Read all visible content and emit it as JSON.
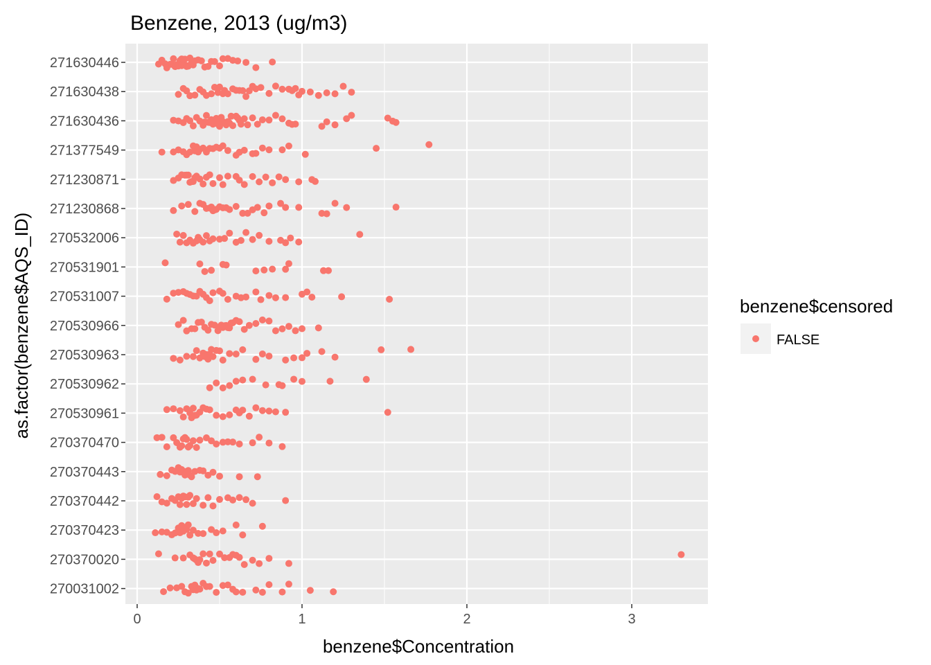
{
  "chart_data": {
    "type": "scatter",
    "title": "Benzene, 2013 (ug/m3)",
    "xlabel": "benzene$Concentration",
    "ylabel": "as.factor(benzene$AQS_ID)",
    "xlim": [
      -0.03,
      3.45
    ],
    "x_ticks": [
      "0",
      "1",
      "2",
      "3"
    ],
    "grid": true,
    "point_color": "#F8766D",
    "panel_color": "#EBEBEB",
    "legend": {
      "title": "benzene$censored",
      "position": "right",
      "entries": [
        "FALSE"
      ]
    },
    "categories": [
      "271630446",
      "271630438",
      "271630436",
      "271377549",
      "271230871",
      "271230868",
      "270532006",
      "270531901",
      "270531007",
      "270530966",
      "270530963",
      "270530962",
      "270530961",
      "270370470",
      "270370443",
      "270370442",
      "270370423",
      "270370020",
      "270031002"
    ],
    "series": [
      {
        "category": "271630446",
        "x": [
          0.13,
          0.15,
          0.17,
          0.18,
          0.2,
          0.21,
          0.22,
          0.23,
          0.24,
          0.25,
          0.25,
          0.26,
          0.27,
          0.27,
          0.28,
          0.28,
          0.29,
          0.3,
          0.3,
          0.31,
          0.32,
          0.33,
          0.34,
          0.35,
          0.37,
          0.39,
          0.41,
          0.43,
          0.45,
          0.47,
          0.5,
          0.52,
          0.55,
          0.58,
          0.61,
          0.66,
          0.72,
          0.82
        ]
      },
      {
        "category": "271630438",
        "x": [
          0.25,
          0.28,
          0.3,
          0.32,
          0.35,
          0.38,
          0.4,
          0.42,
          0.45,
          0.47,
          0.49,
          0.5,
          0.52,
          0.53,
          0.55,
          0.58,
          0.6,
          0.62,
          0.64,
          0.66,
          0.68,
          0.7,
          0.72,
          0.75,
          0.8,
          0.84,
          0.88,
          0.92,
          0.94,
          0.96,
          0.98,
          1.0,
          1.05,
          1.1,
          1.15,
          1.2,
          1.25,
          1.3
        ]
      },
      {
        "category": "271630436",
        "x": [
          0.22,
          0.25,
          0.28,
          0.3,
          0.32,
          0.34,
          0.36,
          0.38,
          0.4,
          0.41,
          0.42,
          0.43,
          0.44,
          0.45,
          0.46,
          0.47,
          0.48,
          0.49,
          0.5,
          0.5,
          0.51,
          0.52,
          0.53,
          0.54,
          0.55,
          0.56,
          0.57,
          0.58,
          0.6,
          0.61,
          0.62,
          0.63,
          0.65,
          0.67,
          0.7,
          0.73,
          0.76,
          0.8,
          0.84,
          0.88,
          0.92,
          0.94,
          0.96,
          1.12,
          1.15,
          1.2,
          1.27,
          1.3,
          1.52,
          1.55,
          1.57
        ]
      },
      {
        "category": "271377549",
        "x": [
          0.15,
          0.22,
          0.25,
          0.28,
          0.3,
          0.32,
          0.34,
          0.35,
          0.36,
          0.37,
          0.38,
          0.4,
          0.42,
          0.44,
          0.46,
          0.48,
          0.5,
          0.52,
          0.55,
          0.6,
          0.62,
          0.65,
          0.7,
          0.72,
          0.76,
          0.8,
          0.88,
          0.92,
          1.02,
          1.45,
          1.77
        ]
      },
      {
        "category": "271230871",
        "x": [
          0.22,
          0.25,
          0.27,
          0.29,
          0.3,
          0.31,
          0.32,
          0.33,
          0.34,
          0.35,
          0.36,
          0.38,
          0.4,
          0.42,
          0.44,
          0.46,
          0.5,
          0.52,
          0.55,
          0.6,
          0.62,
          0.65,
          0.7,
          0.74,
          0.78,
          0.82,
          0.86,
          0.9,
          0.98,
          1.06,
          1.08
        ]
      },
      {
        "category": "271230868",
        "x": [
          0.22,
          0.27,
          0.31,
          0.35,
          0.38,
          0.4,
          0.42,
          0.44,
          0.45,
          0.46,
          0.47,
          0.48,
          0.5,
          0.52,
          0.54,
          0.56,
          0.6,
          0.64,
          0.67,
          0.7,
          0.73,
          0.77,
          0.8,
          0.87,
          0.9,
          0.98,
          1.12,
          1.15,
          1.2,
          1.27,
          1.57
        ]
      },
      {
        "category": "270532006",
        "x": [
          0.24,
          0.26,
          0.28,
          0.3,
          0.32,
          0.34,
          0.36,
          0.37,
          0.38,
          0.4,
          0.42,
          0.44,
          0.46,
          0.5,
          0.53,
          0.56,
          0.6,
          0.63,
          0.66,
          0.7,
          0.74,
          0.8,
          0.87,
          0.9,
          0.93,
          0.98,
          1.35
        ]
      },
      {
        "category": "270531901",
        "x": [
          0.17,
          0.38,
          0.41,
          0.45,
          0.52,
          0.54,
          0.72,
          0.77,
          0.82,
          0.9,
          0.92,
          1.13,
          1.16
        ]
      },
      {
        "category": "270531007",
        "x": [
          0.18,
          0.22,
          0.25,
          0.28,
          0.3,
          0.32,
          0.34,
          0.36,
          0.38,
          0.4,
          0.42,
          0.44,
          0.46,
          0.5,
          0.52,
          0.55,
          0.6,
          0.63,
          0.66,
          0.72,
          0.75,
          0.8,
          0.84,
          0.9,
          1.0,
          1.03,
          1.06,
          1.24,
          1.53
        ]
      },
      {
        "category": "270530966",
        "x": [
          0.25,
          0.28,
          0.3,
          0.33,
          0.35,
          0.37,
          0.39,
          0.41,
          0.43,
          0.45,
          0.47,
          0.49,
          0.5,
          0.51,
          0.52,
          0.53,
          0.54,
          0.55,
          0.56,
          0.57,
          0.58,
          0.6,
          0.62,
          0.65,
          0.68,
          0.72,
          0.76,
          0.8,
          0.84,
          0.88,
          0.92,
          0.96,
          1.0,
          1.1
        ]
      },
      {
        "category": "270530963",
        "x": [
          0.22,
          0.26,
          0.3,
          0.34,
          0.36,
          0.38,
          0.4,
          0.41,
          0.42,
          0.43,
          0.44,
          0.45,
          0.46,
          0.48,
          0.5,
          0.52,
          0.56,
          0.6,
          0.64,
          0.72,
          0.76,
          0.8,
          0.9,
          0.95,
          1.0,
          1.03,
          1.12,
          1.2,
          1.48,
          1.66
        ]
      },
      {
        "category": "270530962",
        "x": [
          0.44,
          0.48,
          0.52,
          0.56,
          0.6,
          0.64,
          0.7,
          0.78,
          0.86,
          0.88,
          0.95,
          1.0,
          1.17,
          1.39
        ]
      },
      {
        "category": "270530961",
        "x": [
          0.18,
          0.22,
          0.26,
          0.28,
          0.3,
          0.32,
          0.33,
          0.34,
          0.35,
          0.36,
          0.38,
          0.4,
          0.42,
          0.44,
          0.48,
          0.52,
          0.56,
          0.6,
          0.62,
          0.64,
          0.68,
          0.72,
          0.76,
          0.8,
          0.84,
          0.9,
          1.52
        ]
      },
      {
        "category": "270370470",
        "x": [
          0.12,
          0.15,
          0.18,
          0.22,
          0.24,
          0.26,
          0.27,
          0.28,
          0.29,
          0.3,
          0.31,
          0.32,
          0.34,
          0.36,
          0.38,
          0.42,
          0.45,
          0.48,
          0.52,
          0.55,
          0.58,
          0.62,
          0.7,
          0.74,
          0.8,
          0.88
        ]
      },
      {
        "category": "270370443",
        "x": [
          0.14,
          0.18,
          0.21,
          0.23,
          0.25,
          0.26,
          0.27,
          0.28,
          0.29,
          0.3,
          0.31,
          0.32,
          0.33,
          0.35,
          0.38,
          0.4,
          0.43,
          0.46,
          0.5,
          0.62,
          0.73
        ]
      },
      {
        "category": "270370442",
        "x": [
          0.12,
          0.15,
          0.18,
          0.21,
          0.23,
          0.25,
          0.26,
          0.27,
          0.28,
          0.29,
          0.3,
          0.31,
          0.32,
          0.34,
          0.36,
          0.4,
          0.43,
          0.46,
          0.5,
          0.55,
          0.58,
          0.62,
          0.66,
          0.7,
          0.9
        ]
      },
      {
        "category": "270370423",
        "x": [
          0.11,
          0.15,
          0.18,
          0.21,
          0.23,
          0.25,
          0.26,
          0.27,
          0.28,
          0.29,
          0.3,
          0.31,
          0.32,
          0.34,
          0.37,
          0.4,
          0.45,
          0.48,
          0.52,
          0.6,
          0.64,
          0.76
        ]
      },
      {
        "category": "270370020",
        "x": [
          0.13,
          0.23,
          0.28,
          0.32,
          0.34,
          0.35,
          0.36,
          0.37,
          0.38,
          0.4,
          0.42,
          0.44,
          0.46,
          0.5,
          0.53,
          0.56,
          0.58,
          0.6,
          0.62,
          0.65,
          0.7,
          0.74,
          0.8,
          0.92,
          3.3
        ]
      },
      {
        "category": "270031002",
        "x": [
          0.16,
          0.2,
          0.24,
          0.27,
          0.29,
          0.31,
          0.33,
          0.34,
          0.35,
          0.36,
          0.37,
          0.38,
          0.4,
          0.42,
          0.44,
          0.48,
          0.52,
          0.55,
          0.58,
          0.6,
          0.64,
          0.72,
          0.76,
          0.8,
          0.88,
          0.92,
          1.05,
          1.19
        ]
      }
    ]
  }
}
